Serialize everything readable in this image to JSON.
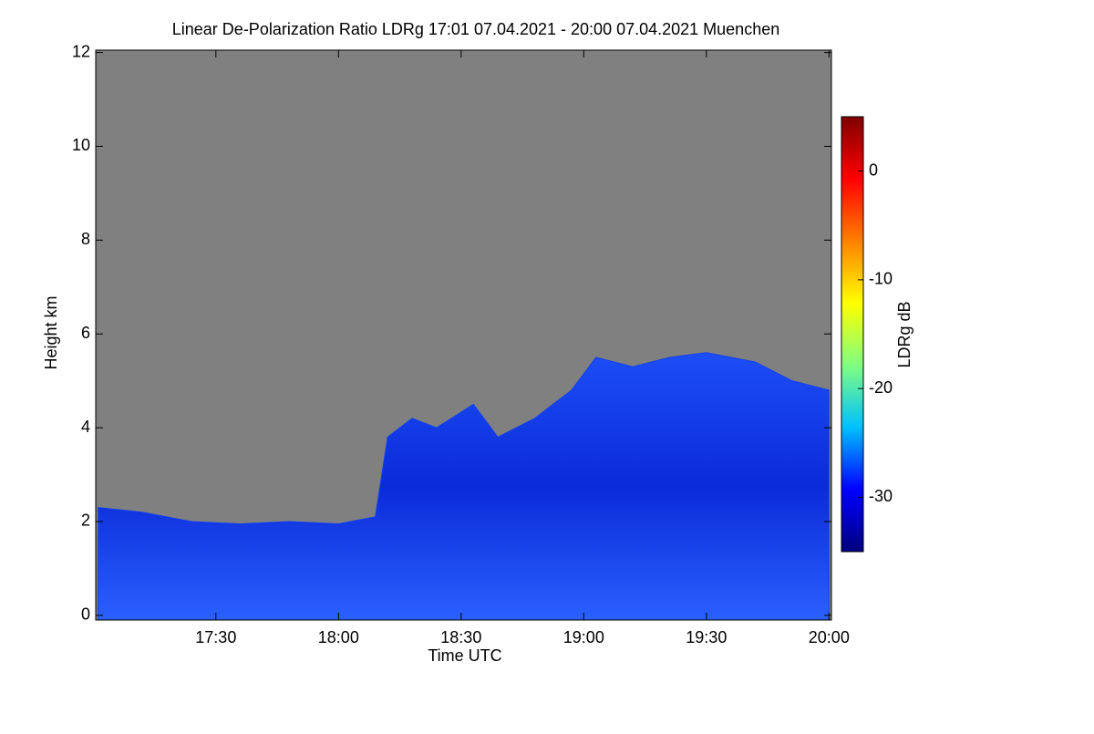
{
  "chart_data": {
    "type": "heatmap",
    "title": "Linear De-Polarization Ratio LDRg   17:01 07.04.2021 - 20:00 07.04.2021 Muenchen",
    "x_label": "Time UTC",
    "y_label": "Height km",
    "xlim": [
      17.01,
      20.01
    ],
    "xticks": [
      {
        "value": 17.5,
        "label": "17:30"
      },
      {
        "value": 18.0,
        "label": "18:00"
      },
      {
        "value": 18.5,
        "label": "18:30"
      },
      {
        "value": 19.0,
        "label": "19:00"
      },
      {
        "value": 19.5,
        "label": "19:30"
      },
      {
        "value": 20.0,
        "label": "20:00"
      }
    ],
    "ylim": [
      -0.1,
      12.05
    ],
    "yticks": [
      0,
      2,
      4,
      6,
      8,
      10,
      12
    ],
    "x": [
      17.02,
      17.2,
      17.4,
      17.6,
      17.8,
      18.0,
      18.15,
      18.2,
      18.3,
      18.4,
      18.55,
      18.65,
      18.8,
      18.95,
      19.05,
      19.2,
      19.35,
      19.5,
      19.7,
      19.85,
      20.0
    ],
    "values": [
      2.3,
      2.2,
      2.0,
      1.95,
      2.0,
      1.95,
      2.1,
      3.8,
      4.2,
      4.0,
      4.5,
      3.8,
      4.2,
      4.8,
      5.5,
      5.3,
      5.5,
      5.6,
      5.4,
      5.0,
      4.8
    ],
    "color": "#1040f0",
    "background": "#808080",
    "colorbar": {
      "label": "LDRg dB",
      "lim": [
        -35,
        5
      ],
      "ticks": [
        0,
        -10,
        -20,
        -30
      ],
      "colors": [
        "#000080",
        "#0000ff",
        "#00c0ff",
        "#80ff80",
        "#ffff00",
        "#ff8000",
        "#ff0000",
        "#800000"
      ]
    }
  }
}
